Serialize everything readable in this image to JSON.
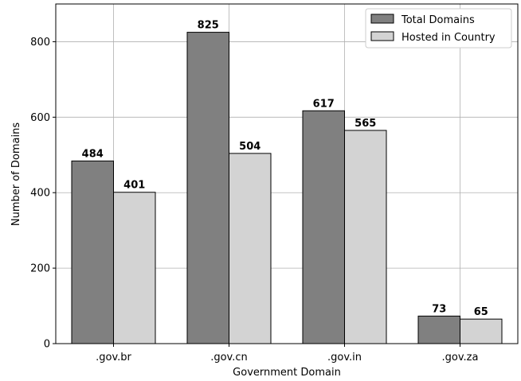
{
  "chart_data": {
    "type": "bar",
    "title": "",
    "xlabel": "Government Domain",
    "ylabel": "Number of Domains",
    "categories": [
      ".gov.br",
      ".gov.cn",
      ".gov.in",
      ".gov.za"
    ],
    "series": [
      {
        "name": "Total Domains",
        "values": [
          484,
          825,
          617,
          73
        ],
        "color": "#808080"
      },
      {
        "name": "Hosted in Country",
        "values": [
          401,
          504,
          565,
          65
        ],
        "color": "#d3d3d3"
      }
    ],
    "ylim": [
      0,
      900
    ],
    "yticks": [
      0,
      200,
      400,
      600,
      800
    ],
    "grid": true,
    "legend_position": "top-right",
    "data_labels": true
  }
}
